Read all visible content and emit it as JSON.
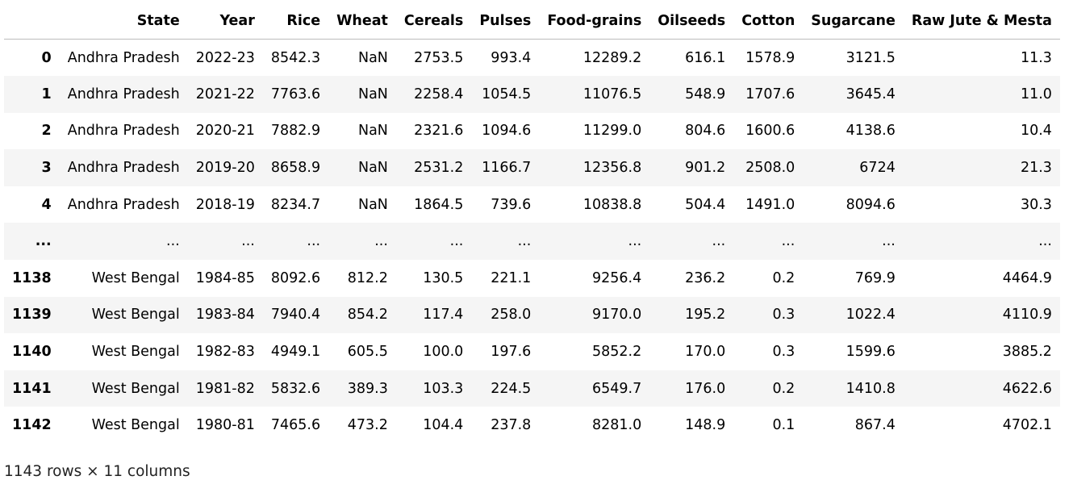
{
  "table": {
    "index_header": "",
    "columns": [
      "State",
      "Year",
      "Rice",
      "Wheat",
      "Cereals",
      "Pulses",
      "Food-grains",
      "Oilseeds",
      "Cotton",
      "Sugarcane",
      "Raw Jute & Mesta"
    ],
    "rows": [
      {
        "index": "0",
        "cells": [
          "Andhra Pradesh",
          "2022-23",
          "8542.3",
          "NaN",
          "2753.5",
          "993.4",
          "12289.2",
          "616.1",
          "1578.9",
          "3121.5",
          "11.3"
        ]
      },
      {
        "index": "1",
        "cells": [
          "Andhra Pradesh",
          "2021-22",
          "7763.6",
          "NaN",
          "2258.4",
          "1054.5",
          "11076.5",
          "548.9",
          "1707.6",
          "3645.4",
          "11.0"
        ]
      },
      {
        "index": "2",
        "cells": [
          "Andhra Pradesh",
          "2020-21",
          "7882.9",
          "NaN",
          "2321.6",
          "1094.6",
          "11299.0",
          "804.6",
          "1600.6",
          "4138.6",
          "10.4"
        ]
      },
      {
        "index": "3",
        "cells": [
          "Andhra Pradesh",
          "2019-20",
          "8658.9",
          "NaN",
          "2531.2",
          "1166.7",
          "12356.8",
          "901.2",
          "2508.0",
          "6724",
          "21.3"
        ]
      },
      {
        "index": "4",
        "cells": [
          "Andhra Pradesh",
          "2018-19",
          "8234.7",
          "NaN",
          "1864.5",
          "739.6",
          "10838.8",
          "504.4",
          "1491.0",
          "8094.6",
          "30.3"
        ]
      },
      {
        "index": "...",
        "cells": [
          "...",
          "...",
          "...",
          "...",
          "...",
          "...",
          "...",
          "...",
          "...",
          "...",
          "..."
        ]
      },
      {
        "index": "1138",
        "cells": [
          "West Bengal",
          "1984-85",
          "8092.6",
          "812.2",
          "130.5",
          "221.1",
          "9256.4",
          "236.2",
          "0.2",
          "769.9",
          "4464.9"
        ]
      },
      {
        "index": "1139",
        "cells": [
          "West Bengal",
          "1983-84",
          "7940.4",
          "854.2",
          "117.4",
          "258.0",
          "9170.0",
          "195.2",
          "0.3",
          "1022.4",
          "4110.9"
        ]
      },
      {
        "index": "1140",
        "cells": [
          "West Bengal",
          "1982-83",
          "4949.1",
          "605.5",
          "100.0",
          "197.6",
          "5852.2",
          "170.0",
          "0.3",
          "1599.6",
          "3885.2"
        ]
      },
      {
        "index": "1141",
        "cells": [
          "West Bengal",
          "1981-82",
          "5832.6",
          "389.3",
          "103.3",
          "224.5",
          "6549.7",
          "176.0",
          "0.2",
          "1410.8",
          "4622.6"
        ]
      },
      {
        "index": "1142",
        "cells": [
          "West Bengal",
          "1980-81",
          "7465.6",
          "473.2",
          "104.4",
          "237.8",
          "8281.0",
          "148.9",
          "0.1",
          "867.4",
          "4702.1"
        ]
      }
    ]
  },
  "shape_info": "1143 rows × 11 columns",
  "colors": {
    "row_stripe": "#f5f5f5",
    "header_border": "#bdbdbd"
  }
}
